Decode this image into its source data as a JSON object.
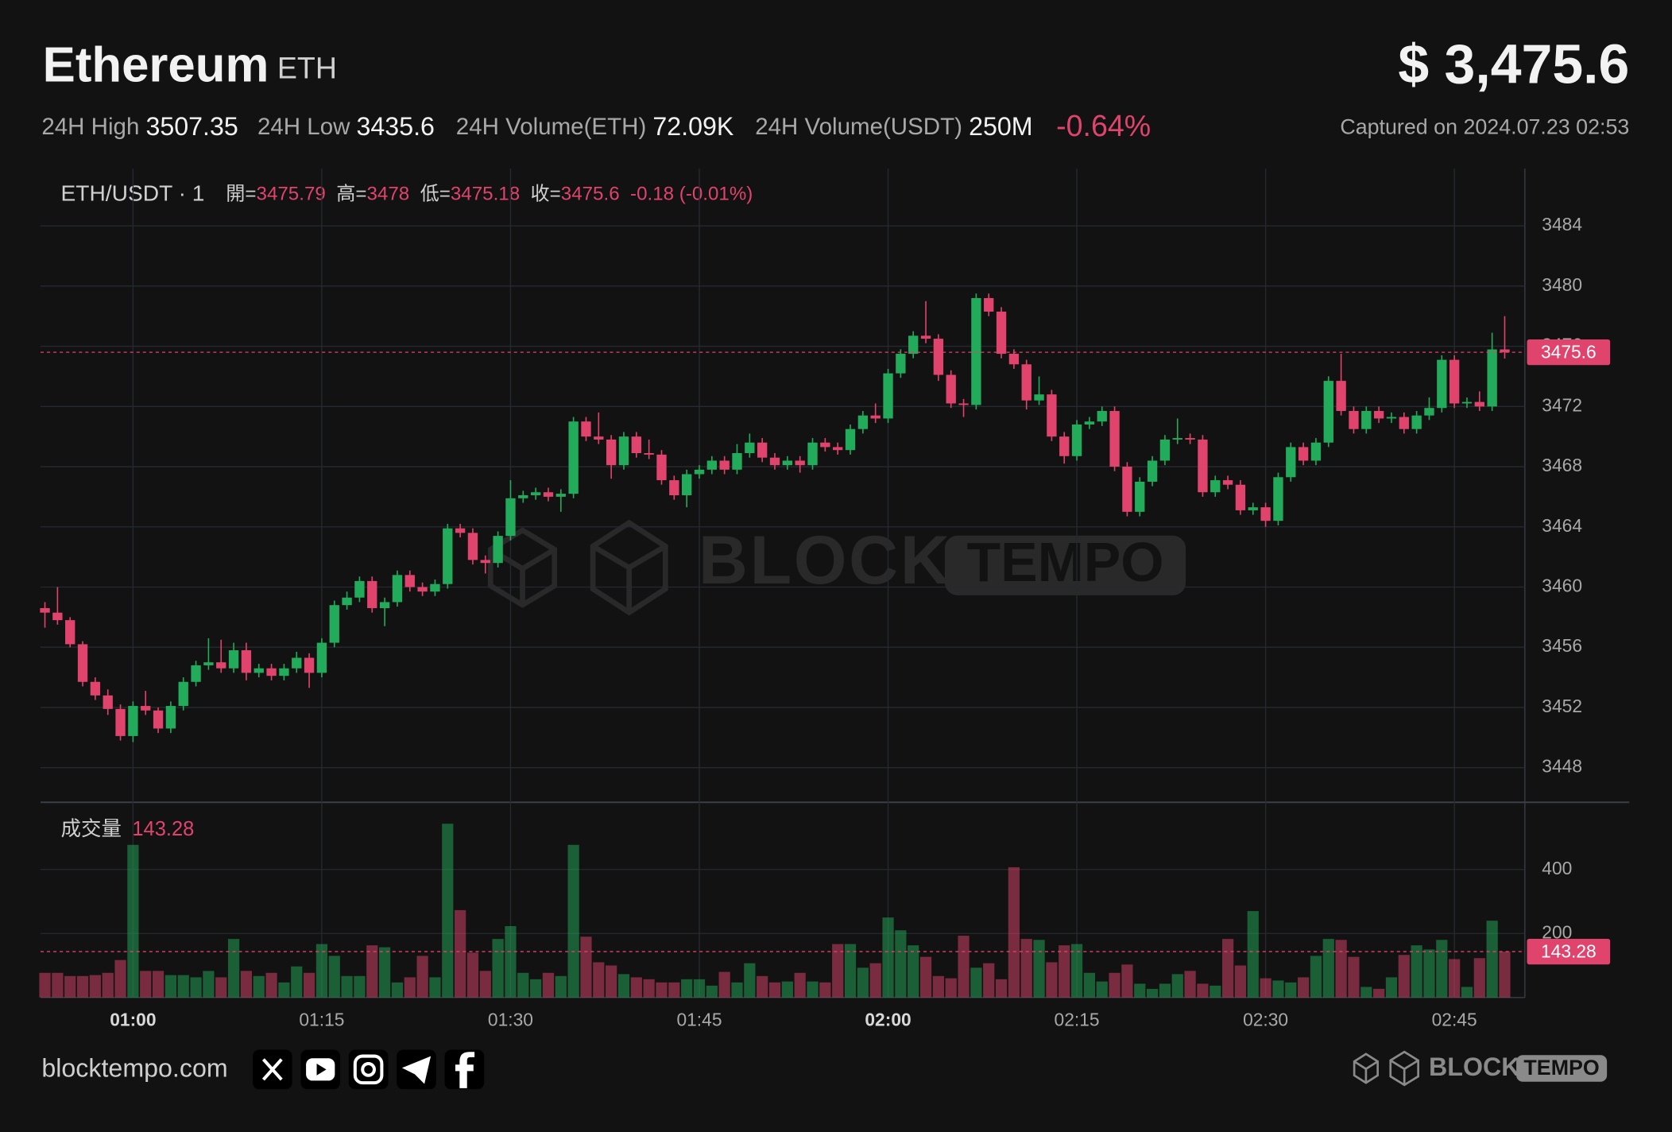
{
  "header": {
    "title": "Ethereum",
    "symbol": "ETH",
    "price": "$ 3,475.6",
    "stats": [
      {
        "label": "24H High",
        "value": "3507.35"
      },
      {
        "label": "24H Low",
        "value": "3435.6"
      },
      {
        "label": "24H Volume(ETH)",
        "value": "72.09K"
      },
      {
        "label": "24H Volume(USDT)",
        "value": "250M"
      }
    ],
    "change": "-0.64%",
    "captured": "Captured on 2024.07.23 02:53"
  },
  "chart_data": {
    "type": "candlestick",
    "title": "ETH/USDT · 1",
    "legend_labels": {
      "open": "開=",
      "high": "高=",
      "low": "低=",
      "close": "收="
    },
    "change_label": "-0.18 (-0.01%)",
    "colors": {
      "up": "#22ab5a",
      "down": "#e0436c"
    },
    "grid": true,
    "open": [
      3458.6,
      3458.3,
      3457.8,
      3456.2,
      3453.7,
      3452.8,
      3451.9,
      3450.1,
      3452.1,
      3451.8,
      3450.6,
      3452.1,
      3453.7,
      3454.8,
      3455.0,
      3454.6,
      3455.8,
      3454.3,
      3454.6,
      3454.1,
      3454.6,
      3455.3,
      3454.3,
      3456.3,
      3458.8,
      3459.3,
      3460.4,
      3458.6,
      3459.0,
      3460.8,
      3460.0,
      3459.7,
      3460.2,
      3463.9,
      3463.6,
      3461.8,
      3461.6,
      3463.4,
      3465.9,
      3466.1,
      3466.3,
      3466.0,
      3466.2,
      3471.0,
      3470.0,
      3469.8,
      3468.1,
      3470.0,
      3468.9,
      3468.8,
      3467.1,
      3466.1,
      3467.5,
      3467.8,
      3468.4,
      3467.8,
      3468.9,
      3469.6,
      3468.6,
      3468.1,
      3468.4,
      3468.1,
      3469.6,
      3469.3,
      3469.1,
      3470.5,
      3471.4,
      3471.2,
      3474.2,
      3475.5,
      3476.7,
      3476.5,
      3474.1,
      3472.2,
      3472.1,
      3479.2,
      3478.3,
      3475.5,
      3474.8,
      3472.4,
      3472.8,
      3470.0,
      3468.7,
      3470.8,
      3471.0,
      3471.7,
      3468.0,
      3465.0,
      3467.0,
      3468.4,
      3469.8,
      3469.9,
      3469.8,
      3466.3,
      3467.1,
      3466.8,
      3465.1,
      3465.3,
      3464.4,
      3467.3,
      3469.3,
      3468.4,
      3469.6,
      3473.7,
      3471.7,
      3470.5,
      3471.7,
      3471.2,
      3471.3,
      3470.5,
      3471.4,
      3471.9,
      3475.1,
      3472.2,
      3472.3,
      3472.0,
      3475.79
    ],
    "high": [
      3459.0,
      3460.0,
      3458.0,
      3456.4,
      3454.0,
      3453.2,
      3452.2,
      3452.4,
      3453.1,
      3452.0,
      3452.4,
      3454.0,
      3455.1,
      3456.6,
      3456.5,
      3456.3,
      3456.3,
      3454.9,
      3454.9,
      3454.9,
      3455.7,
      3455.6,
      3456.6,
      3459.1,
      3459.7,
      3460.7,
      3460.7,
      3459.3,
      3461.1,
      3461.1,
      3460.3,
      3460.5,
      3464.2,
      3464.2,
      3463.9,
      3462.1,
      3463.7,
      3467.1,
      3466.4,
      3466.6,
      3466.6,
      3466.5,
      3471.3,
      3471.3,
      3471.6,
      3470.1,
      3470.3,
      3470.3,
      3469.8,
      3469.1,
      3467.4,
      3467.8,
      3468.1,
      3468.7,
      3468.7,
      3469.5,
      3470.2,
      3469.9,
      3468.9,
      3468.7,
      3468.7,
      3469.9,
      3469.9,
      3469.6,
      3470.8,
      3471.7,
      3472.2,
      3474.5,
      3475.8,
      3477.0,
      3479.0,
      3476.8,
      3474.4,
      3472.5,
      3479.5,
      3479.5,
      3478.6,
      3475.8,
      3475.1,
      3474.0,
      3473.1,
      3470.3,
      3471.1,
      3471.3,
      3472.0,
      3472.0,
      3468.3,
      3467.3,
      3468.7,
      3470.1,
      3471.2,
      3470.2,
      3470.1,
      3467.4,
      3467.4,
      3467.1,
      3465.6,
      3465.6,
      3467.6,
      3469.6,
      3469.6,
      3469.9,
      3474.0,
      3475.5,
      3472.0,
      3472.0,
      3472.0,
      3471.6,
      3471.6,
      3471.7,
      3472.6,
      3475.4,
      3475.4,
      3472.6,
      3473.0,
      3476.9,
      3478
    ],
    "low": [
      3457.3,
      3457.5,
      3456.0,
      3453.4,
      3452.5,
      3451.5,
      3449.8,
      3449.7,
      3451.5,
      3450.3,
      3450.3,
      3451.8,
      3453.4,
      3454.5,
      3454.3,
      3454.3,
      3453.8,
      3454.0,
      3453.8,
      3453.8,
      3454.3,
      3453.3,
      3454.0,
      3456.0,
      3458.5,
      3459.0,
      3458.3,
      3457.4,
      3458.7,
      3459.7,
      3459.4,
      3459.4,
      3459.9,
      3463.3,
      3461.5,
      3460.9,
      3461.3,
      3463.1,
      3465.6,
      3465.8,
      3465.7,
      3465.0,
      3465.9,
      3469.7,
      3469.5,
      3467.2,
      3467.8,
      3468.6,
      3468.5,
      3466.8,
      3465.8,
      3465.3,
      3467.2,
      3467.5,
      3467.5,
      3467.5,
      3468.6,
      3468.3,
      3467.8,
      3467.8,
      3467.6,
      3467.8,
      3469.0,
      3468.8,
      3468.8,
      3470.2,
      3470.9,
      3470.9,
      3473.9,
      3475.2,
      3476.2,
      3473.7,
      3471.9,
      3471.3,
      3471.8,
      3478.0,
      3475.2,
      3474.5,
      3471.8,
      3472.1,
      3469.7,
      3468.2,
      3468.4,
      3470.5,
      3470.7,
      3467.7,
      3464.7,
      3464.7,
      3466.7,
      3468.1,
      3469.5,
      3469.5,
      3466.0,
      3466.0,
      3466.5,
      3464.8,
      3464.8,
      3464.0,
      3464.1,
      3467.0,
      3468.1,
      3468.1,
      3469.3,
      3471.4,
      3470.2,
      3470.2,
      3470.9,
      3470.9,
      3470.2,
      3470.2,
      3471.1,
      3471.6,
      3471.9,
      3471.9,
      3471.7,
      3471.7,
      3475.18
    ],
    "close": [
      3458.3,
      3457.8,
      3456.2,
      3453.7,
      3452.8,
      3451.9,
      3450.1,
      3452.1,
      3451.8,
      3450.6,
      3452.1,
      3453.7,
      3454.8,
      3455.0,
      3454.6,
      3455.8,
      3454.3,
      3454.6,
      3454.1,
      3454.6,
      3455.3,
      3454.3,
      3456.3,
      3458.8,
      3459.3,
      3460.4,
      3458.6,
      3459.0,
      3460.8,
      3460.0,
      3459.7,
      3460.2,
      3463.9,
      3463.6,
      3461.8,
      3461.6,
      3463.4,
      3465.9,
      3466.1,
      3466.3,
      3466.0,
      3466.2,
      3471.0,
      3470.0,
      3469.8,
      3468.1,
      3470.0,
      3468.9,
      3468.8,
      3467.1,
      3466.1,
      3467.5,
      3467.8,
      3468.4,
      3467.8,
      3468.9,
      3469.6,
      3468.6,
      3468.1,
      3468.4,
      3468.1,
      3469.6,
      3469.3,
      3469.1,
      3470.5,
      3471.4,
      3471.2,
      3474.2,
      3475.5,
      3476.7,
      3476.5,
      3474.1,
      3472.2,
      3472.1,
      3479.2,
      3478.3,
      3475.5,
      3474.8,
      3472.4,
      3472.8,
      3470.0,
      3468.7,
      3470.8,
      3471.0,
      3471.7,
      3468.0,
      3465.0,
      3467.0,
      3468.4,
      3469.8,
      3469.9,
      3469.8,
      3466.3,
      3467.1,
      3466.8,
      3465.1,
      3465.3,
      3464.4,
      3467.3,
      3469.3,
      3468.4,
      3469.6,
      3473.7,
      3471.7,
      3470.5,
      3471.7,
      3471.2,
      3471.3,
      3470.5,
      3471.4,
      3471.9,
      3475.1,
      3472.2,
      3472.3,
      3472.0,
      3475.79,
      3475.6
    ],
    "xlim": [
      -0.35,
      117.6
    ],
    "xticks": [
      {
        "value": 7,
        "label": "01:00"
      },
      {
        "value": 22,
        "label": "01:15"
      },
      {
        "value": 37,
        "label": "01:30"
      },
      {
        "value": 52,
        "label": "01:45"
      },
      {
        "value": 67,
        "label": "02:00"
      },
      {
        "value": 82,
        "label": "02:15"
      },
      {
        "value": 97,
        "label": "02:30"
      },
      {
        "value": 112,
        "label": "02:45"
      }
    ],
    "ylim": [
      3445.7,
      3487.8
    ],
    "yticks": [
      3448,
      3452,
      3456,
      3460,
      3464,
      3468,
      3472,
      3476,
      3480,
      3484
    ],
    "volume": {
      "title": "成交量",
      "y2lim": [
        0,
        590
      ],
      "y2ticks": [
        200,
        400
      ],
      "values": [
        77,
        77,
        67,
        67,
        70,
        77,
        117,
        477,
        83,
        83,
        70,
        70,
        63,
        83,
        63,
        183,
        83,
        67,
        77,
        47,
        97,
        77,
        167,
        130,
        67,
        67,
        163,
        157,
        47,
        63,
        130,
        63,
        543,
        273,
        140,
        83,
        183,
        223,
        77,
        57,
        77,
        67,
        477,
        190,
        110,
        100,
        73,
        63,
        57,
        47,
        47,
        57,
        57,
        37,
        80,
        47,
        107,
        67,
        47,
        50,
        77,
        50,
        47,
        167,
        167,
        93,
        107,
        250,
        210,
        163,
        127,
        67,
        60,
        193,
        93,
        107,
        57,
        407,
        183,
        180,
        110,
        163,
        167,
        77,
        50,
        77,
        103,
        43,
        27,
        43,
        73,
        83,
        43,
        37,
        183,
        100,
        270,
        60,
        53,
        47,
        63,
        130,
        183,
        180,
        127,
        33,
        27,
        63,
        133,
        163,
        150,
        180,
        120,
        33,
        123,
        240,
        143.28
      ]
    }
  },
  "watermark": {
    "brand": "BLOCK",
    "badge": "TEMPO"
  },
  "footer": {
    "site": "blocktempo.com",
    "brand": "BLOCK",
    "badge": "TEMPO"
  }
}
